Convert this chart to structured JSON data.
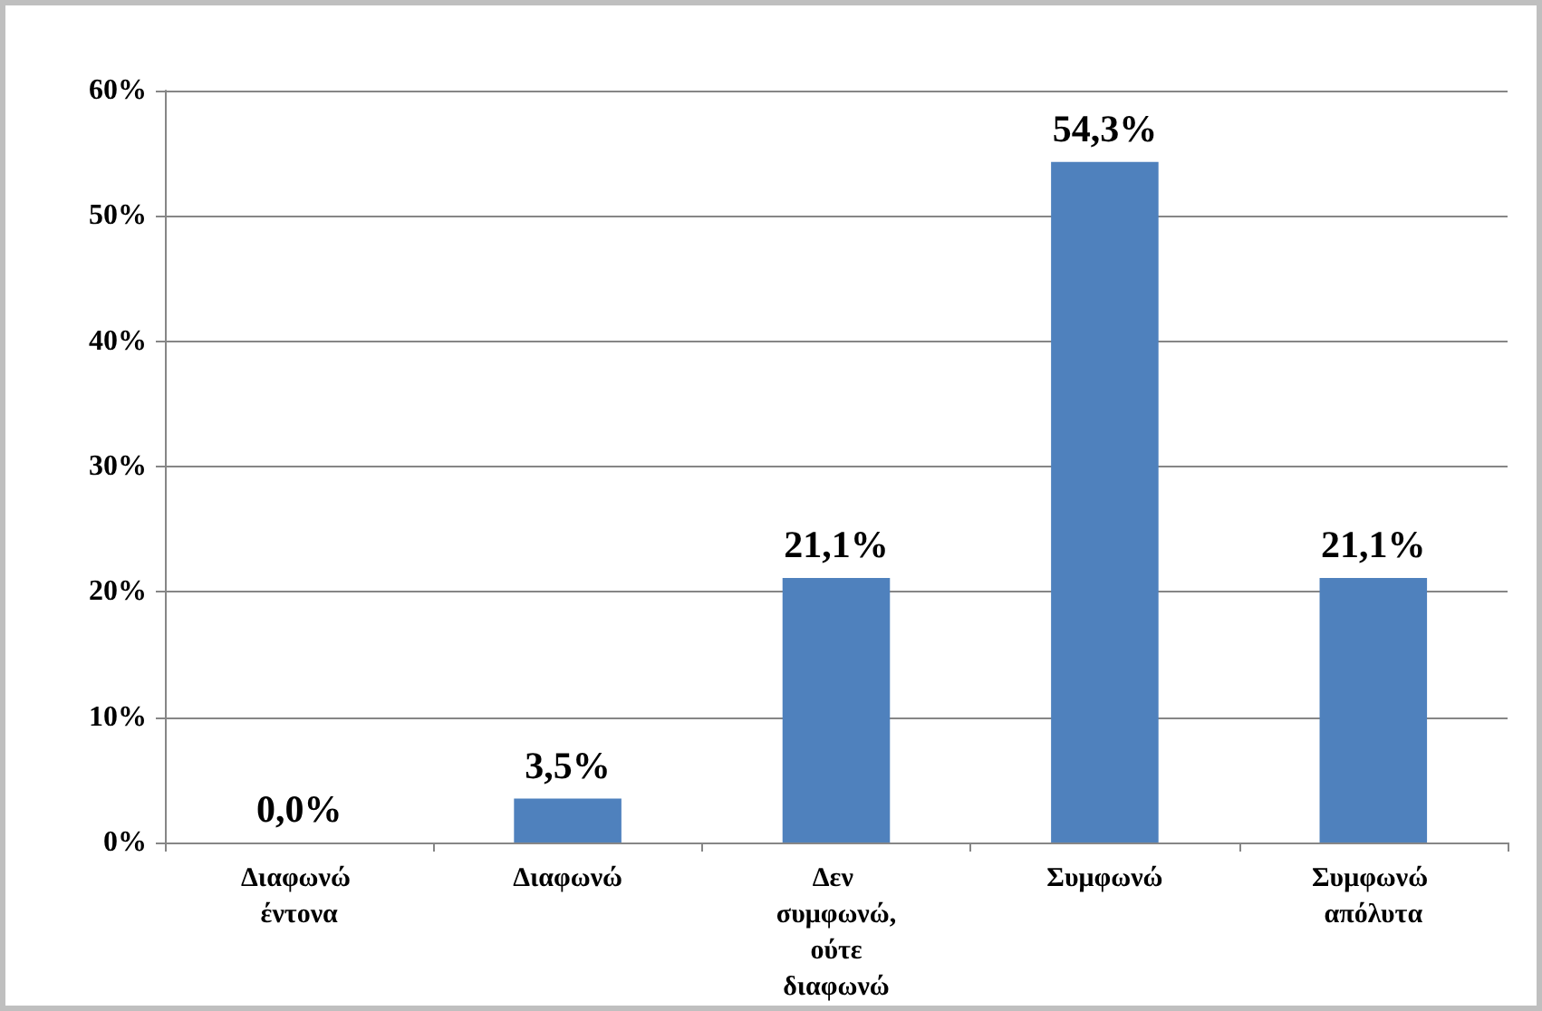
{
  "chart_data": {
    "type": "bar",
    "categories": [
      "Διαφωνώ έντονα",
      "Διαφωνώ",
      "Δεν συμφωνώ, ούτε διαφωνώ",
      "Συμφωνώ",
      "Συμφωνώ απόλυτα"
    ],
    "values": [
      0,
      3.5,
      21.1,
      54.3,
      21.1
    ],
    "value_labels": [
      "0,0%",
      "3,5%",
      "21,1%",
      "54,3%",
      "21,1%"
    ],
    "color": "#4f81bd",
    "ylim": [
      0,
      60
    ],
    "yticks": [
      {
        "value": 0,
        "label": "0%"
      },
      {
        "value": 10,
        "label": "10%"
      },
      {
        "value": 20,
        "label": "20%"
      },
      {
        "value": 30,
        "label": "30%"
      },
      {
        "value": 40,
        "label": "40%"
      },
      {
        "value": 50,
        "label": "50%"
      },
      {
        "value": 60,
        "label": "60%"
      }
    ],
    "grid": "y"
  }
}
